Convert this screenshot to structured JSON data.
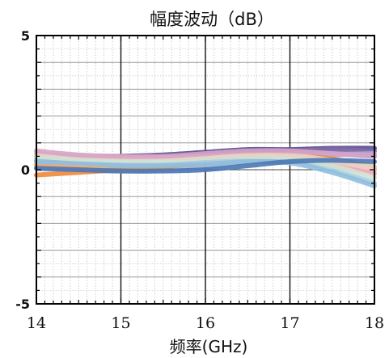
{
  "chart_data": {
    "type": "line",
    "title": "幅度波动（dB）",
    "xlabel": "频率(GHz)",
    "ylabel": "",
    "xlim": [
      14,
      18
    ],
    "ylim": [
      -5,
      5
    ],
    "xticks": [
      14,
      15,
      16,
      17,
      18
    ],
    "xtick_labels": [
      "14",
      "15",
      "16",
      "17",
      "18"
    ],
    "yticks": [
      -5,
      0,
      5
    ],
    "ytick_labels": [
      "-5",
      "0",
      "5"
    ],
    "grid": true,
    "legend": "none",
    "x": [
      14.0,
      14.5,
      15.0,
      15.5,
      16.0,
      16.5,
      17.0,
      17.5,
      18.0
    ],
    "series": [
      {
        "color": "#5b4a8e",
        "values": [
          0.6,
          0.45,
          0.5,
          0.55,
          0.65,
          0.75,
          0.75,
          0.8,
          0.8
        ]
      },
      {
        "color": "#7f6ba8",
        "values": [
          0.5,
          0.4,
          0.4,
          0.45,
          0.55,
          0.65,
          0.7,
          0.75,
          0.7
        ]
      },
      {
        "color": "#9c8cc0",
        "values": [
          0.35,
          0.3,
          0.25,
          0.3,
          0.4,
          0.5,
          0.6,
          0.6,
          0.5
        ]
      },
      {
        "color": "#b7a9d4",
        "values": [
          0.1,
          0.0,
          -0.05,
          0.0,
          0.1,
          0.3,
          0.45,
          0.55,
          0.6
        ]
      },
      {
        "color": "#f0883a",
        "values": [
          -0.2,
          -0.1,
          0.0,
          0.1,
          0.3,
          0.5,
          0.55,
          0.4,
          0.1
        ]
      },
      {
        "color": "#f5a35c",
        "values": [
          0.2,
          0.15,
          0.15,
          0.2,
          0.35,
          0.45,
          0.5,
          0.3,
          0.0
        ]
      },
      {
        "color": "#f7be8c",
        "values": [
          0.55,
          0.45,
          0.4,
          0.4,
          0.5,
          0.55,
          0.5,
          0.3,
          0.05
        ]
      },
      {
        "color": "#f4c9d8",
        "values": [
          0.45,
          0.4,
          0.3,
          0.3,
          0.4,
          0.5,
          0.45,
          0.2,
          -0.05
        ]
      },
      {
        "color": "#f2a9b5",
        "values": [
          0.3,
          0.25,
          0.2,
          0.25,
          0.35,
          0.45,
          0.4,
          0.15,
          -0.15
        ]
      },
      {
        "color": "#a9cfe6",
        "values": [
          0.4,
          0.35,
          0.25,
          0.25,
          0.3,
          0.4,
          0.35,
          0.0,
          -0.5
        ]
      },
      {
        "color": "#8fbedc",
        "values": [
          0.3,
          0.25,
          0.15,
          0.15,
          0.2,
          0.3,
          0.25,
          -0.1,
          -0.6
        ]
      },
      {
        "color": "#cfe3d4",
        "values": [
          0.5,
          0.4,
          0.35,
          0.35,
          0.45,
          0.5,
          0.45,
          0.15,
          -0.3
        ]
      },
      {
        "color": "#e6d3c3",
        "values": [
          0.6,
          0.5,
          0.45,
          0.45,
          0.5,
          0.55,
          0.55,
          0.35,
          0.1
        ]
      },
      {
        "color": "#4a78b5",
        "values": [
          0.05,
          0.0,
          -0.05,
          -0.05,
          0.0,
          0.15,
          0.3,
          0.35,
          0.3
        ]
      },
      {
        "color": "#d6a3c8",
        "values": [
          0.7,
          0.55,
          0.5,
          0.5,
          0.6,
          0.7,
          0.7,
          0.6,
          0.5
        ]
      }
    ]
  }
}
